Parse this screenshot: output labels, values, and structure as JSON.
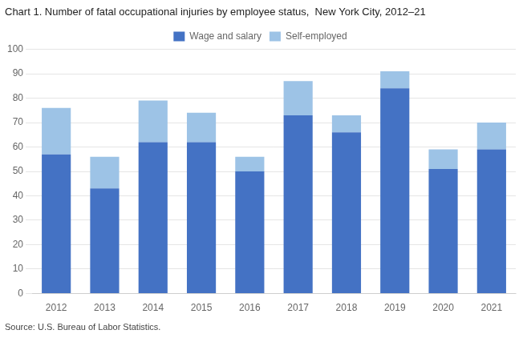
{
  "chart_data": {
    "type": "bar",
    "title": "Chart 1. Number of fatal occupational injuries by employee status,  New York City, 2012–21",
    "source": "Source: U.S. Bureau of Labor Statistics.",
    "categories": [
      "2012",
      "2013",
      "2014",
      "2015",
      "2016",
      "2017",
      "2018",
      "2019",
      "2020",
      "2021"
    ],
    "series": [
      {
        "name": "Wage and salary",
        "color": "#4472C4",
        "values": [
          57,
          43,
          62,
          62,
          50,
          73,
          66,
          84,
          51,
          59
        ]
      },
      {
        "name": "Self-employed",
        "color": "#9DC3E6",
        "values": [
          19,
          13,
          17,
          12,
          6,
          14,
          7,
          7,
          8,
          11
        ]
      }
    ],
    "stacked": true,
    "ylim": [
      0,
      100
    ],
    "yticks": [
      0,
      10,
      20,
      30,
      40,
      50,
      60,
      70,
      80,
      90,
      100
    ],
    "grid": true,
    "legend": "top"
  }
}
